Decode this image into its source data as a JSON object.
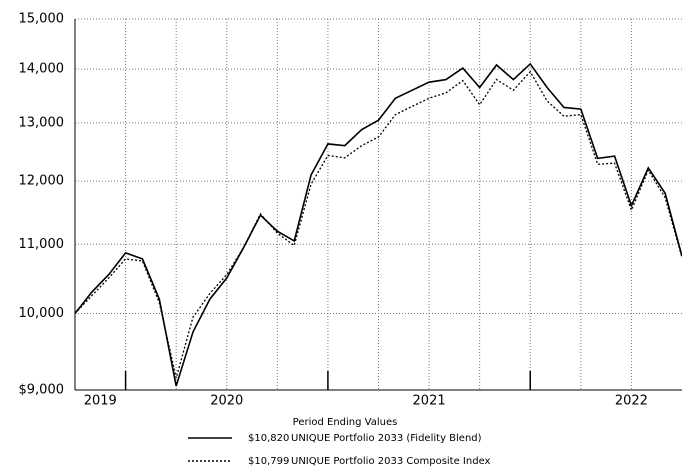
{
  "chart_data": {
    "type": "line",
    "log_scale": true,
    "grid": true,
    "x": [
      0,
      1,
      2,
      3,
      4,
      5,
      6,
      7,
      8,
      9,
      10,
      11,
      12,
      13,
      14,
      15,
      16,
      17,
      18,
      19,
      20,
      21,
      22,
      23,
      24,
      25,
      26,
      27,
      28,
      29,
      30,
      31,
      32,
      33,
      34,
      35,
      36
    ],
    "xlim": [
      0,
      36
    ],
    "xticks": [
      3,
      6,
      9,
      12,
      15,
      18,
      21,
      24,
      27,
      30,
      33
    ],
    "year_ticks": [
      3,
      15,
      27
    ],
    "year_labels": [
      {
        "value": 1.5,
        "label": "2019"
      },
      {
        "value": 9,
        "label": "2020"
      },
      {
        "value": 21,
        "label": "2021"
      },
      {
        "value": 33,
        "label": "2022"
      }
    ],
    "ylim": [
      9000,
      15000
    ],
    "yticks": [
      {
        "value": 9000,
        "label": "$9,000"
      },
      {
        "value": 10000,
        "label": "10,000"
      },
      {
        "value": 11000,
        "label": "11,000"
      },
      {
        "value": 12000,
        "label": "12,000"
      },
      {
        "value": 13000,
        "label": "13,000"
      },
      {
        "value": 14000,
        "label": "14,000"
      },
      {
        "value": 15000,
        "label": "15,000"
      }
    ],
    "legend_title": "Period Ending Values",
    "series": [
      {
        "name": "UNIQUE Portfolio 2033 (Fidelity Blend)",
        "color": "#000000",
        "dash": "solid",
        "end_label": "$10,820",
        "values": [
          10000,
          10300,
          10550,
          10870,
          10780,
          10200,
          9050,
          9750,
          10200,
          10500,
          10950,
          11450,
          11200,
          11050,
          12100,
          12630,
          12600,
          12880,
          13050,
          13450,
          13600,
          13750,
          13800,
          14020,
          13650,
          14080,
          13800,
          14100,
          13650,
          13280,
          13250,
          12380,
          12420,
          11600,
          12220,
          11800,
          10820
        ]
      },
      {
        "name": "UNIQUE Portfolio 2033 Composite Index",
        "color": "#000000",
        "dash": "dotted",
        "end_label": "$10,799",
        "values": [
          10000,
          10250,
          10500,
          10780,
          10750,
          10150,
          9150,
          9950,
          10280,
          10550,
          10950,
          11470,
          11170,
          10980,
          11950,
          12430,
          12390,
          12600,
          12750,
          13150,
          13300,
          13450,
          13550,
          13780,
          13330,
          13800,
          13600,
          13950,
          13400,
          13120,
          13150,
          12280,
          12300,
          11530,
          12180,
          11730,
          10799
        ]
      }
    ]
  }
}
